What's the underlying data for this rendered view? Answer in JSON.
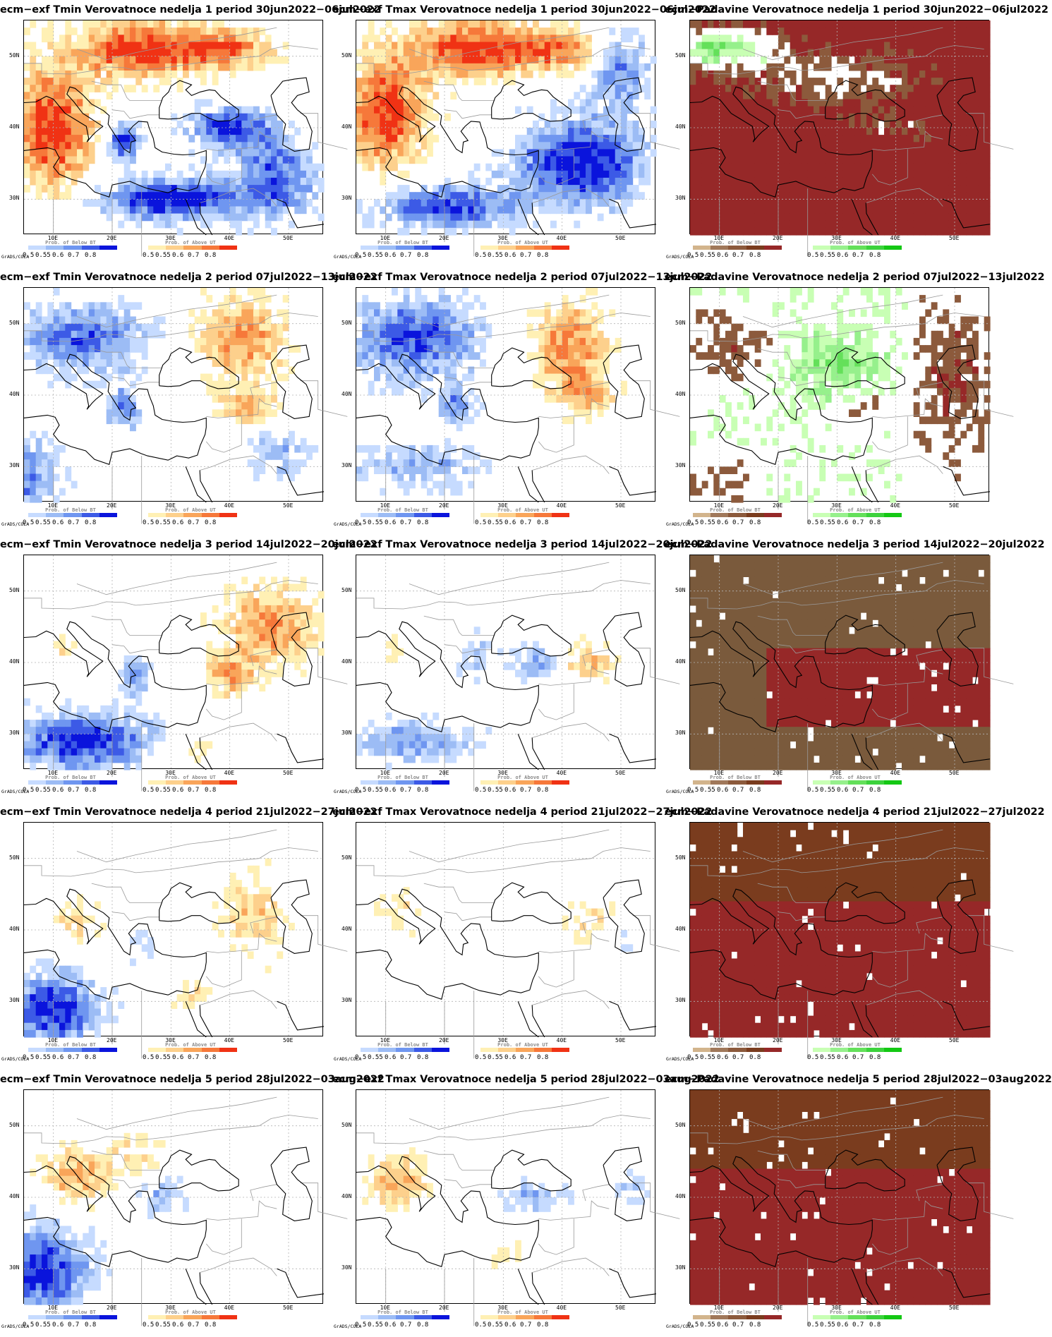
{
  "panels": [
    {
      "title": "ecm−exf Tmin Verovatnoce nedelja 1 period 30jun2022−06jul2022",
      "kind": "temp",
      "pattern": "w1_tmin"
    },
    {
      "title": "ecm−exf Tmax Verovatnoce nedelja 1 period 30jun2022−06jul2022",
      "kind": "temp",
      "pattern": "w1_tmax"
    },
    {
      "title": "ecm−Padavine Verovatnoce nedelja 1 period 30jun2022−06jul2022",
      "kind": "prec",
      "pattern": "w1_prec"
    },
    {
      "title": "ecm−exf Tmin Verovatnoce nedelja 2 period 07jul2022−13jul2022",
      "kind": "temp",
      "pattern": "w2_tmin"
    },
    {
      "title": "ecm−exf Tmax Verovatnoce nedelja 2 period 07jul2022−13jul2022",
      "kind": "temp",
      "pattern": "w2_tmax"
    },
    {
      "title": "ecm−Padavine Verovatnoce nedelja 2 period 07jul2022−13jul2022",
      "kind": "prec",
      "pattern": "w2_prec"
    },
    {
      "title": "ecm−exf Tmin Verovatnoce nedelja 3 period 14jul2022−20jul2022",
      "kind": "temp",
      "pattern": "w3_tmin"
    },
    {
      "title": "ecm−exf Tmax Verovatnoce nedelja 3 period 14jul2022−20jul2022",
      "kind": "temp",
      "pattern": "w3_tmax"
    },
    {
      "title": "ecm−Padavine Verovatnoce nedelja 3 period 14jul2022−20jul2022",
      "kind": "prec",
      "pattern": "w3_prec"
    },
    {
      "title": "ecm−exf Tmin Verovatnoce nedelja 4 period 21jul2022−27jul2022",
      "kind": "temp",
      "pattern": "w4_tmin"
    },
    {
      "title": "ecm−exf Tmax Verovatnoce nedelja 4 period 21jul2022−27jul2022",
      "kind": "temp",
      "pattern": "w4_tmax"
    },
    {
      "title": "ecm−Padavine Verovatnoce nedelja 4 period 21jul2022−27jul2022",
      "kind": "prec",
      "pattern": "w4_prec"
    },
    {
      "title": "ecm−exf Tmin Verovatnoce nedelja 5 period 28jul2022−03aug2022",
      "kind": "temp",
      "pattern": "w5_tmin"
    },
    {
      "title": "ecm−exf Tmax Verovatnoce nedelja 5 period 28jul2022−03aug2022",
      "kind": "temp",
      "pattern": "w5_tmax"
    },
    {
      "title": "ecm−Padavine Verovatnoce nedelja 5 period 28jul2022−03aug2022",
      "kind": "prec",
      "pattern": "w5_prec"
    }
  ],
  "axes": {
    "lat_labels": [
      "50N",
      "40N",
      "30N"
    ],
    "lon_labels": [
      "10E",
      "20E",
      "30E",
      "40E",
      "50E"
    ]
  },
  "legend": {
    "credit": "GrADS/COLA",
    "temp_below_title": "Prob. of Below BT",
    "temp_above_title": "Prob. of Above UT",
    "prec_below_title": "Prob. of Below BT",
    "prec_above_title": "Prob. of Above UT",
    "ticks": [
      "0.5",
      "0.55",
      "0.6",
      "0.7",
      "0.8"
    ],
    "colors": {
      "temp_below": [
        "#c6dbff",
        "#9cbcf5",
        "#6f96f0",
        "#3c5ae6",
        "#0a14dc"
      ],
      "temp_above": [
        "#fff0b4",
        "#fdd08c",
        "#f9a55a",
        "#f6783a",
        "#f03214"
      ],
      "prec_below": [
        "#d2b48c",
        "#a0785a",
        "#8c5a3c",
        "#7a3c1e",
        "#962828"
      ],
      "prec_above": [
        "#c8ffb4",
        "#96f08c",
        "#64e05a",
        "#3cd23c",
        "#14c814"
      ]
    }
  }
}
